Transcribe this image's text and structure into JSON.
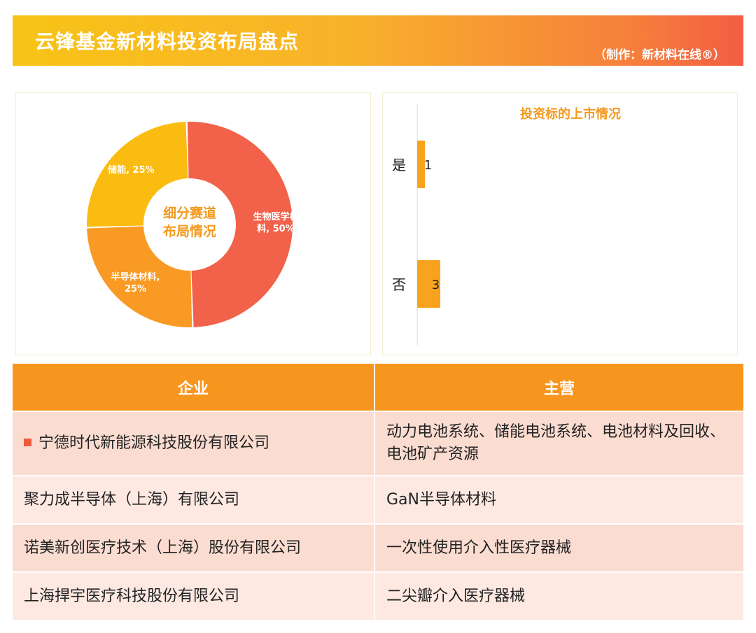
{
  "header": {
    "title": "云锋基金新材料投资布局盘点",
    "credit": "（制作：新材料在线®）"
  },
  "colors": {
    "bio": "#f2624a",
    "semi": "#f89a23",
    "storage": "#fbbc12",
    "bar": "#f8a31e",
    "header": "#f7961f",
    "row_odd": "#fbdcd1",
    "row_even": "#fde9e2",
    "accent_text": "#f29a20"
  },
  "chart_data": [
    {
      "type": "pie",
      "title": "细分赛道布局情况",
      "title_lines": [
        "细分赛道",
        "布局情况"
      ],
      "slices": [
        {
          "label": "生物医学材料",
          "value": 50,
          "display": [
            "生物医学材",
            "料, 50%"
          ],
          "color": "#f2624a"
        },
        {
          "label": "半导体材料",
          "value": 25,
          "display": [
            "半导体材料,",
            "25%"
          ],
          "color": "#f89a23"
        },
        {
          "label": "储能",
          "value": 25,
          "display": [
            "储能, 25%"
          ],
          "color": "#fbbc12"
        }
      ]
    },
    {
      "type": "bar",
      "orientation": "horizontal",
      "title": "投资标的上市情况",
      "categories": [
        "是",
        "否"
      ],
      "values": [
        1,
        3
      ],
      "xlim": [
        0,
        3
      ]
    }
  ],
  "table": {
    "headers": [
      "企业",
      "主营"
    ],
    "rows": [
      {
        "company": "宁德时代新能源科技股份有限公司",
        "business": "动力电池系统、储能电池系统、电池材料及回收、电池矿产资源"
      },
      {
        "company": "聚力成半导体（上海）有限公司",
        "business": "GaN半导体材料"
      },
      {
        "company": "诺美新创医疗技术（上海）股份有限公司",
        "business": "一次性使用介入性医疗器械"
      },
      {
        "company": "上海捍宇医疗科技股份有限公司",
        "business": "二尖瓣介入医疗器械"
      }
    ]
  }
}
